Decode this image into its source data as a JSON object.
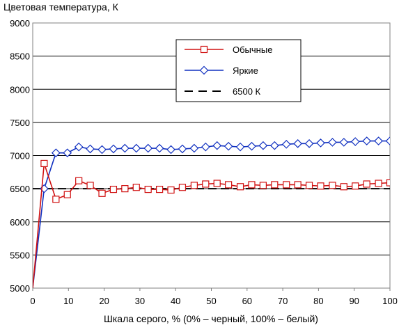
{
  "chart_data": {
    "type": "line",
    "title": "Цветовая температура, К",
    "xlabel": "Шкала серого, % (0% – черный, 100% – белый)",
    "ylabel": "",
    "xlim": [
      0,
      100
    ],
    "ylim": [
      5000,
      9000
    ],
    "x_ticks": [
      "0",
      "10",
      "20",
      "30",
      "40",
      "50",
      "60",
      "70",
      "80",
      "90",
      "100"
    ],
    "y_ticks": [
      "5000",
      "5500",
      "6000",
      "6500",
      "7000",
      "7500",
      "8000",
      "8500",
      "9000"
    ],
    "grid": "horizontal",
    "legend_position": "top-right",
    "series": [
      {
        "name": "Обычные",
        "color": "#d01010",
        "marker": "square",
        "x": [
          0,
          3.2,
          6.5,
          9.7,
          12.9,
          16.1,
          19.4,
          22.6,
          25.8,
          29.0,
          32.3,
          35.5,
          38.7,
          41.9,
          45.2,
          48.4,
          51.6,
          54.8,
          58.1,
          61.3,
          64.5,
          67.7,
          71.0,
          74.2,
          77.4,
          80.6,
          83.9,
          87.1,
          90.3,
          93.5,
          96.8,
          100
        ],
        "y": [
          5000,
          6880,
          6340,
          6410,
          6620,
          6550,
          6430,
          6490,
          6500,
          6520,
          6490,
          6490,
          6480,
          6520,
          6550,
          6570,
          6580,
          6560,
          6530,
          6560,
          6550,
          6560,
          6560,
          6560,
          6550,
          6540,
          6550,
          6530,
          6540,
          6570,
          6580,
          6590
        ]
      },
      {
        "name": "Яркие",
        "color": "#1030c0",
        "marker": "diamond",
        "x": [
          0,
          3.2,
          6.5,
          9.7,
          12.9,
          16.1,
          19.4,
          22.6,
          25.8,
          29.0,
          32.3,
          35.5,
          38.7,
          41.9,
          45.2,
          48.4,
          51.6,
          54.8,
          58.1,
          61.3,
          64.5,
          67.7,
          71.0,
          74.2,
          77.4,
          80.6,
          83.9,
          87.1,
          90.3,
          93.5,
          96.8,
          100
        ],
        "y": [
          5000,
          6500,
          7040,
          7040,
          7130,
          7100,
          7090,
          7100,
          7110,
          7110,
          7110,
          7110,
          7090,
          7100,
          7110,
          7130,
          7150,
          7140,
          7130,
          7140,
          7150,
          7150,
          7170,
          7180,
          7180,
          7190,
          7200,
          7200,
          7210,
          7220,
          7220,
          7220
        ]
      },
      {
        "name": "6500 К",
        "color": "#000000",
        "marker": "none",
        "dash": true,
        "x": [
          0,
          100
        ],
        "y": [
          6500,
          6500
        ]
      }
    ]
  }
}
